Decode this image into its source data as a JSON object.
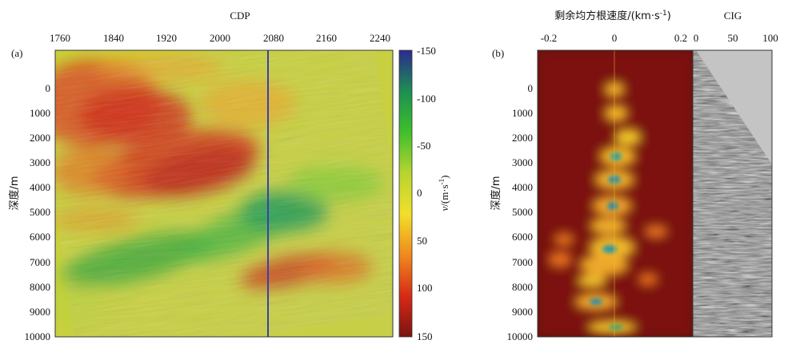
{
  "figure": {
    "panel_a": {
      "label": "(a)",
      "x_axis_title": "CDP",
      "x_ticks": [
        "1760",
        "1840",
        "1920",
        "2000",
        "2080",
        "2160",
        "2240"
      ],
      "y_ticks": [
        "0",
        "1000",
        "2000",
        "3000",
        "4000",
        "5000",
        "6000",
        "7000",
        "8000",
        "9000",
        "10000"
      ],
      "y_axis_title": "深度/m",
      "colorbar": {
        "ticks": [
          "-150",
          "-100",
          "-50",
          "0",
          "50",
          "100",
          "150"
        ],
        "title": "v/(m·s⁻¹)",
        "title_v": "v",
        "title_unit": "/(m·s",
        "title_exp": "-1",
        "title_close": ")",
        "range": [
          -150,
          150
        ],
        "colors": [
          "#2b2a8f",
          "#1d8f52",
          "#3fc02a",
          "#b7d431",
          "#f1e02a",
          "#f08a1d",
          "#d72a17",
          "#7a1410"
        ]
      },
      "marker_line_color": "#3b3fb0",
      "marker_line_cdp": 2072
    },
    "panel_b": {
      "label": "(b)",
      "gather_title": "剩余均方根速度/(km·s",
      "gather_title_exp": "-1",
      "gather_title_close": ")",
      "gather_x_ticks": [
        "-0.2",
        "0",
        "0.2"
      ],
      "cig_title": "CIG",
      "cig_x_ticks": [
        "0",
        "50",
        "100"
      ],
      "y_ticks": [
        "0",
        "1000",
        "2000",
        "3000",
        "4000",
        "5000",
        "6000",
        "7000",
        "8000",
        "9000",
        "10000"
      ],
      "y_axis_title": "深度/m"
    }
  }
}
